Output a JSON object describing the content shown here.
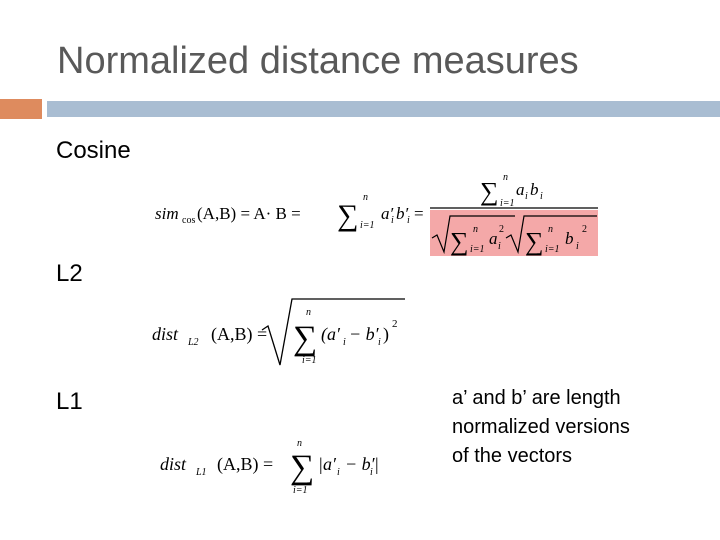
{
  "title": "Normalized distance measures",
  "sections": [
    "Cosine",
    "L2",
    "L1"
  ],
  "formulas": {
    "cosine": [
      "sim",
      "cos",
      "(A,B) = A· B = ",
      "∑",
      "n",
      "i=1",
      "a′",
      "i",
      "b′",
      "i",
      "=",
      "∑",
      "n",
      "i=1",
      "a",
      "i",
      "b",
      "i",
      "∑",
      "n",
      "i=1",
      "a",
      "i",
      "2",
      "∑",
      "n",
      "i=1",
      "b",
      "i",
      "2"
    ],
    "l2": [
      "dist",
      "L2",
      "(A,B) = ",
      "∑",
      "n",
      "i=1",
      "(a′",
      "i",
      "− b′",
      "i",
      ")",
      "2"
    ],
    "l1": [
      "dist",
      "L1",
      "(A,B) = ",
      "∑",
      "n",
      "i=1",
      "|a′",
      "i",
      "− b′",
      "i",
      "|"
    ]
  },
  "note": [
    "a’ and b’ are length",
    "normalized versions",
    "of the vectors"
  ]
}
